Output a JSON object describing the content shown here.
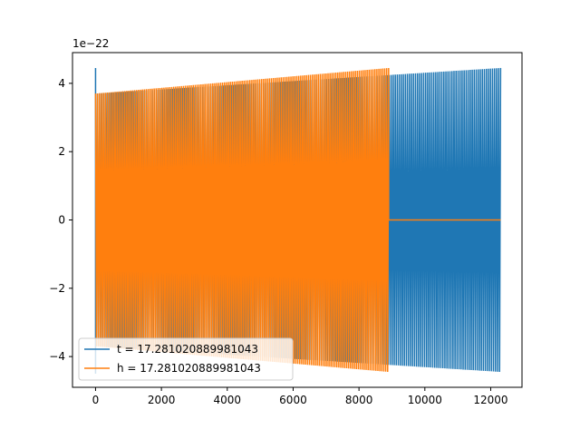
{
  "chart_data": {
    "type": "line",
    "title": "",
    "xlabel": "",
    "ylabel": "",
    "y_offset_label": "1e−22",
    "xlim": [
      -700,
      12950
    ],
    "ylim": [
      -4.9,
      4.9
    ],
    "x_ticks": [
      0,
      2000,
      4000,
      6000,
      8000,
      10000,
      12000
    ],
    "x_tick_labels": [
      "0",
      "2000",
      "4000",
      "6000",
      "8000",
      "10000",
      "12000"
    ],
    "y_ticks": [
      -4,
      -2,
      0,
      2,
      4
    ],
    "y_tick_labels": [
      "−4",
      "−2",
      "0",
      "2",
      "4"
    ],
    "grid": false,
    "legend_position": "lower-left",
    "series": [
      {
        "name": "t = 17.281020889981043",
        "color": "#1f77b4",
        "x_range": [
          0,
          12300
        ],
        "start_spike": 4.45,
        "envelope_start": 3.7,
        "envelope_end": 4.45,
        "cycles": 200,
        "tail_to_zero": false
      },
      {
        "name": "h = 17.281020889981043",
        "color": "#ff7f0e",
        "x_range": [
          0,
          8900
        ],
        "start_spike": 0,
        "envelope_start": 3.7,
        "envelope_end": 4.45,
        "cycles": 150,
        "tail_to_zero": true,
        "tail_end": 12300
      }
    ]
  }
}
